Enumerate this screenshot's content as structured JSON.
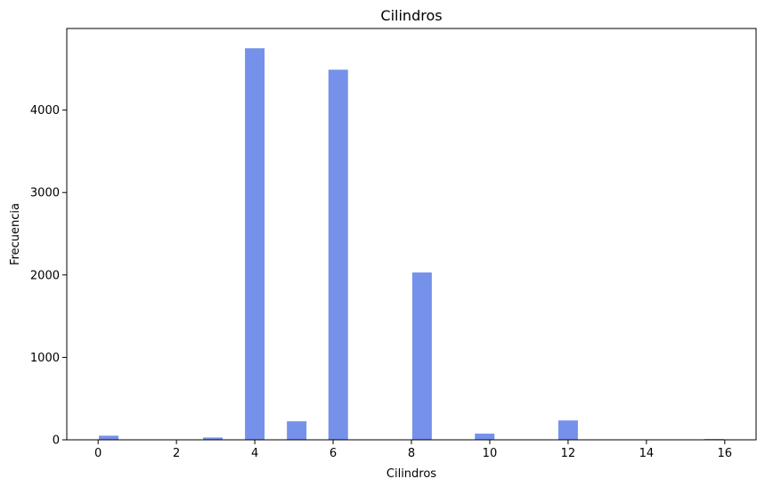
{
  "chart_data": {
    "type": "bar",
    "title": "Cilindros",
    "xlabel": "Cilindros",
    "ylabel": "Frecuencia",
    "xlim": [
      -0.8,
      16.8
    ],
    "ylim": [
      0,
      4990
    ],
    "xticks": [
      0,
      2,
      4,
      6,
      8,
      10,
      12,
      14,
      16
    ],
    "yticks": [
      0,
      1000,
      2000,
      3000,
      4000
    ],
    "bar_width": 0.5,
    "grid": false,
    "legend": "none",
    "bars": [
      {
        "x": 0.27,
        "value": 50
      },
      {
        "x": 2.93,
        "value": 28
      },
      {
        "x": 4.0,
        "value": 4750
      },
      {
        "x": 5.07,
        "value": 225
      },
      {
        "x": 6.13,
        "value": 4490
      },
      {
        "x": 8.27,
        "value": 2030
      },
      {
        "x": 9.87,
        "value": 75
      },
      {
        "x": 12.0,
        "value": 235
      },
      {
        "x": 15.73,
        "value": 10
      }
    ],
    "bar_color": "#7591ea",
    "axis_color": "#000000"
  }
}
